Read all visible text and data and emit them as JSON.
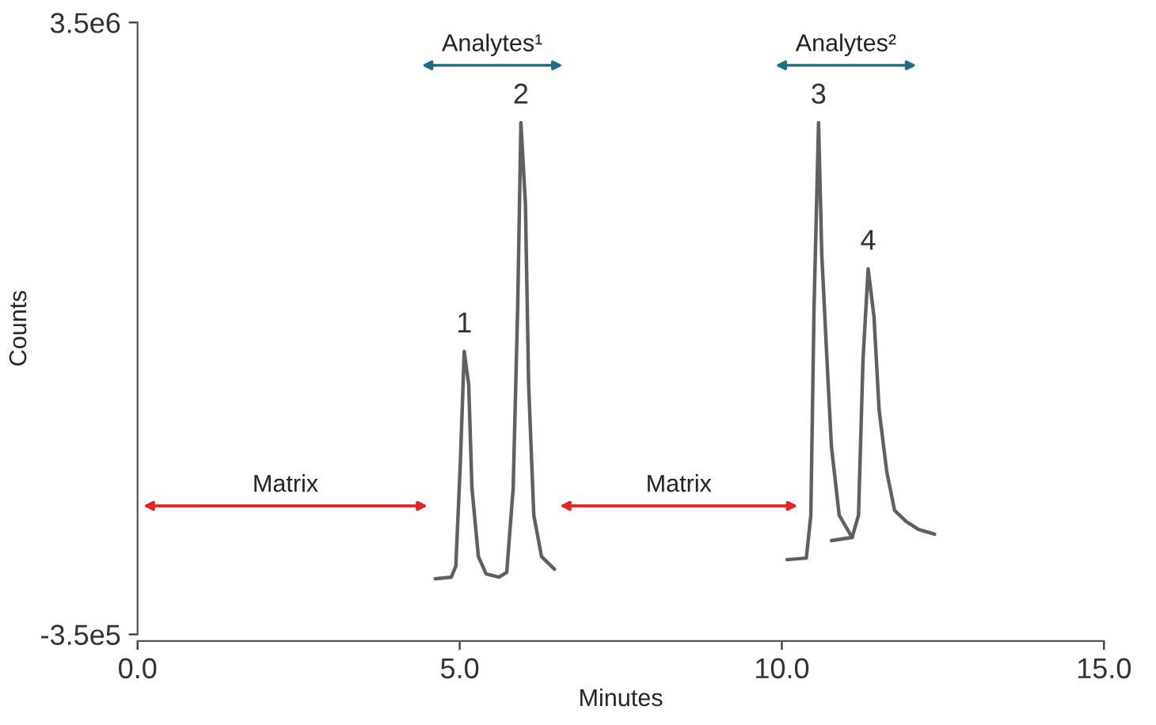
{
  "chart_data": {
    "type": "line",
    "xlabel": "Minutes",
    "ylabel": "Counts",
    "xlim": [
      0,
      15
    ],
    "xticks": [
      {
        "value": 0,
        "label": "0.0"
      },
      {
        "value": 5,
        "label": "5.0"
      },
      {
        "value": 10,
        "label": "10.0"
      },
      {
        "value": 15,
        "label": "15.0"
      }
    ],
    "ylim": [
      -350000,
      3500000
    ],
    "yticks": [
      {
        "value": -350000,
        "label": "-3.5e5"
      },
      {
        "value": 3500000,
        "label": "3.5e6"
      }
    ],
    "grid": false,
    "marker": "none",
    "line_style": "solid",
    "series": [
      {
        "color": "#606060",
        "x": [
          4.62,
          4.87,
          4.94,
          5.01,
          5.07,
          5.14,
          5.19,
          5.29,
          5.41,
          5.61,
          5.73,
          5.83,
          5.9,
          5.95,
          6.02,
          6.07,
          6.15,
          6.27,
          6.47
        ],
        "values": [
          0,
          10000,
          80000,
          730000,
          1430000,
          1220000,
          570000,
          140000,
          30000,
          10000,
          40000,
          570000,
          1710000,
          2870000,
          2360000,
          1220000,
          400000,
          140000,
          60000
        ]
      },
      {
        "color": "#606060",
        "x": [
          10.08,
          10.38,
          10.45,
          10.5,
          10.57,
          10.62,
          10.7,
          10.77,
          10.89,
          11.09
        ],
        "values": [
          120000,
          130000,
          400000,
          1710000,
          2870000,
          2040000,
          1380000,
          830000,
          400000,
          260000
        ]
      },
      {
        "color": "#606060",
        "x": [
          10.77,
          11.09,
          11.19,
          11.26,
          11.34,
          11.43,
          11.51,
          11.63,
          11.75,
          11.93,
          12.12,
          12.37
        ],
        "values": [
          240000,
          260000,
          400000,
          1380000,
          1950000,
          1650000,
          1060000,
          670000,
          430000,
          360000,
          310000,
          280000
        ]
      }
    ],
    "annotations": [
      {
        "text": "1",
        "x": 5.07,
        "y": 1430000
      },
      {
        "text": "2",
        "x": 5.95,
        "y": 2870000
      },
      {
        "text": "3",
        "x": 10.57,
        "y": 2870000
      },
      {
        "text": "4",
        "x": 11.34,
        "y": 1950000
      },
      "Matrix",
      "Matrix",
      "Analytes¹",
      "Analytes²"
    ]
  }
}
